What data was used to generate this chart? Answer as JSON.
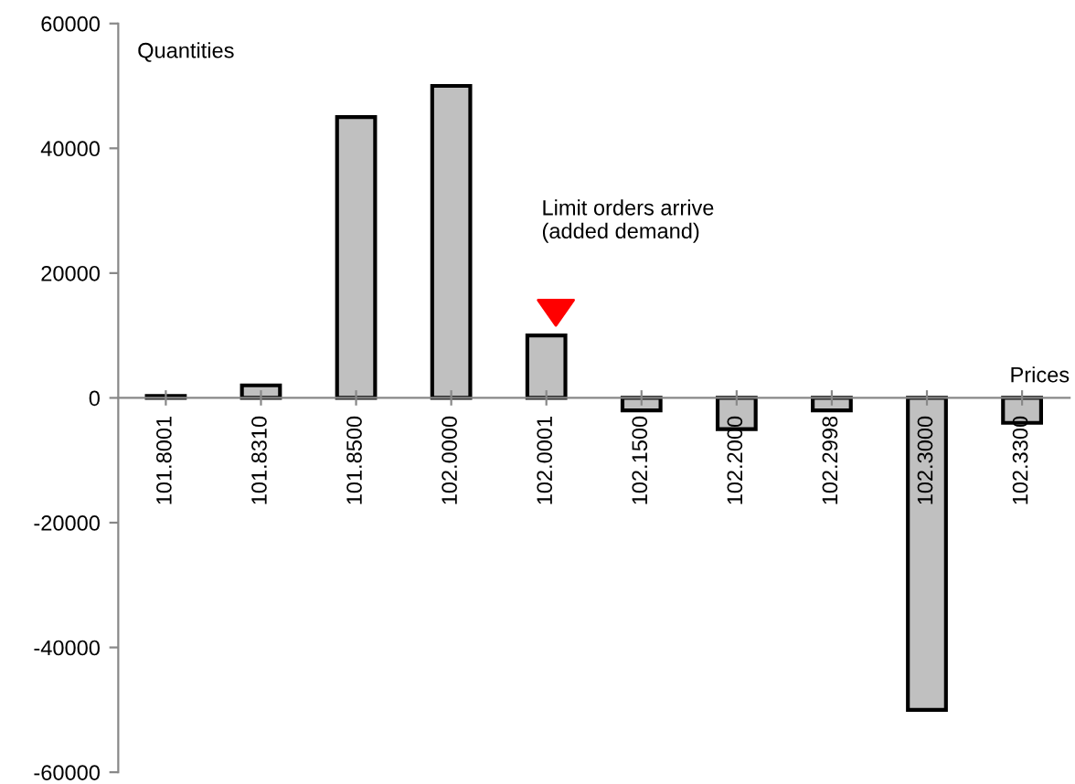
{
  "chart_data": {
    "type": "bar",
    "ylabel": "Quantities",
    "xlabel": "Prices",
    "categories": [
      "101.8001",
      "101.8310",
      "101.8500",
      "102.0000",
      "102.0001",
      "102.1500",
      "102.2000",
      "102.2998",
      "102.3000",
      "102.3300"
    ],
    "values": [
      300,
      2000,
      45000,
      50000,
      10000,
      -2000,
      -5000,
      -2000,
      -50000,
      -4000
    ],
    "color": "#c0c0c0",
    "ylim": [
      -60000,
      60000
    ],
    "yticks": [
      -60000,
      -40000,
      -20000,
      0,
      20000,
      40000,
      60000
    ],
    "grid": false,
    "legend": false,
    "annotations": [
      "Limit orders arrive\n(added demand)"
    ]
  }
}
